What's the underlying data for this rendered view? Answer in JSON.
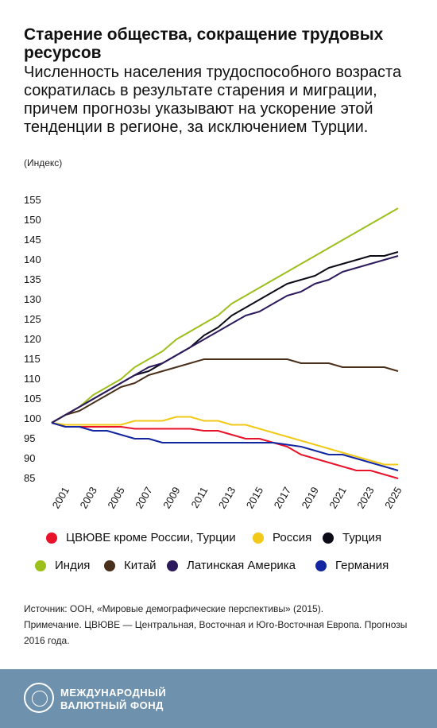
{
  "header": {
    "title": "Старение общества, сокращение трудовых ресурсов",
    "subtitle": "Численность населения трудоспособного возраста сократилась в результате старения и миграции, причем прогнозы указывают на ускорение этой тенденции в регионе, за исключением Турции.",
    "unit_label": "(Индекс)"
  },
  "chart_data": {
    "type": "line",
    "title": "",
    "xlabel": "",
    "ylabel": "(Индекс)",
    "ylim": [
      85,
      155
    ],
    "xlim": [
      2000,
      2025
    ],
    "y_ticks": [
      "155",
      "150",
      "145",
      "140",
      "135",
      "130",
      "125",
      "120",
      "115",
      "110",
      "105",
      "100",
      "95",
      "90",
      "85"
    ],
    "x_ticks": [
      "2001",
      "2003",
      "2005",
      "2007",
      "2009",
      "2011",
      "2013",
      "2015",
      "2017",
      "2019",
      "2021",
      "2023",
      "2025"
    ],
    "grid": false,
    "legend_position": "bottom",
    "x": [
      2000,
      2001,
      2002,
      2003,
      2004,
      2005,
      2006,
      2007,
      2008,
      2009,
      2010,
      2011,
      2012,
      2013,
      2014,
      2015,
      2016,
      2017,
      2018,
      2019,
      2020,
      2021,
      2022,
      2023,
      2024,
      2025
    ],
    "series": [
      {
        "name": "ЦВЮВЕ кроме России, Турции",
        "color": "#e8132b",
        "values": [
          99,
          98,
          98,
          98,
          98,
          98,
          97.5,
          97.5,
          97.5,
          97.5,
          97.5,
          97,
          97,
          96,
          95,
          95,
          94,
          93,
          91,
          90,
          89,
          88,
          87,
          87,
          86,
          85
        ]
      },
      {
        "name": "Россия",
        "color": "#f0c919",
        "values": [
          99,
          98.5,
          98.5,
          98.5,
          98.5,
          98.5,
          99.5,
          99.5,
          99.5,
          100.5,
          100.5,
          99.5,
          99.5,
          98.5,
          98.5,
          97.5,
          96.5,
          95.5,
          94.5,
          93.5,
          92.5,
          91.5,
          90.5,
          89.5,
          88.5,
          88.5
        ]
      },
      {
        "name": "Турция",
        "color": "#0b0b18",
        "values": [
          99,
          101,
          103,
          105,
          107,
          109,
          111,
          112,
          114,
          116,
          118,
          121,
          123,
          126,
          128,
          130,
          132,
          134,
          135,
          136,
          138,
          139,
          140,
          141,
          141,
          142
        ]
      },
      {
        "name": "Индия",
        "color": "#9cbf1c",
        "values": [
          99,
          101,
          103,
          106,
          108,
          110,
          113,
          115,
          117,
          120,
          122,
          124,
          126,
          129,
          131,
          133,
          135,
          137,
          139,
          141,
          143,
          145,
          147,
          149,
          151,
          153
        ]
      },
      {
        "name": "Китай",
        "color": "#4a2f1a",
        "values": [
          99,
          101,
          102,
          104,
          106,
          108,
          109,
          111,
          112,
          113,
          114,
          115,
          115,
          115,
          115,
          115,
          115,
          115,
          114,
          114,
          114,
          113,
          113,
          113,
          113,
          112
        ]
      },
      {
        "name": "Латинская Америка",
        "color": "#2d1a5c",
        "values": [
          99,
          101,
          103,
          105,
          107,
          109,
          111,
          113,
          114,
          116,
          118,
          120,
          122,
          124,
          126,
          127,
          129,
          131,
          132,
          134,
          135,
          137,
          138,
          139,
          140,
          141
        ]
      },
      {
        "name": "Германия",
        "color": "#1226a0",
        "values": [
          99,
          98,
          98,
          97,
          97,
          96,
          95,
          95,
          94,
          94,
          94,
          94,
          94,
          94,
          94,
          94,
          94,
          93.5,
          93,
          92,
          91,
          91,
          90,
          89,
          88,
          87
        ]
      }
    ]
  },
  "legend": {
    "items": [
      {
        "label": "ЦВЮВЕ кроме России, Турции",
        "color": "#e8132b"
      },
      {
        "label": "Россия",
        "color": "#f0c919"
      },
      {
        "label": "Турция",
        "color": "#0b0b18"
      },
      {
        "label": "Индия",
        "color": "#9cbf1c"
      },
      {
        "label": "Китай",
        "color": "#4a2f1a"
      },
      {
        "label": "Латинская Америка",
        "color": "#2d1a5c"
      },
      {
        "label": "Германия",
        "color": "#1226a0"
      }
    ]
  },
  "notes": {
    "source": "Источник: ООН, «Мировые демографические перспективы» (2015).",
    "note": "Примечание. ЦВЮВЕ — Центральная, Восточная и Юго-Восточная Европа. Прогнозы 2016 года."
  },
  "footer": {
    "logo_line1": "МЕЖДУНАРОДНЫЙ",
    "logo_line2": "ВАЛЮТНЫЙ ФОНД",
    "background": "#6e91ad"
  }
}
